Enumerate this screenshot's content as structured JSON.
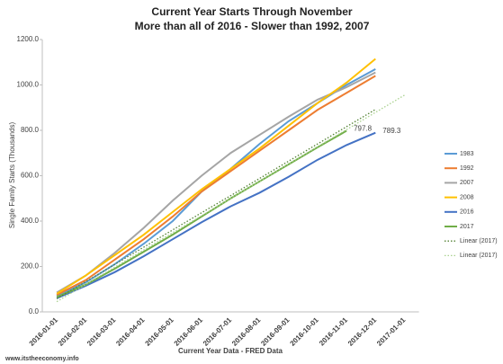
{
  "chart_data": {
    "type": "line",
    "title": "Current Year Starts Through November",
    "subtitle": "More than all of 2016 - Slower than 1992, 2007",
    "y_label": "Single Family Starts (Thousands)",
    "x_label": "Current Year Data - FRED Data",
    "footer": "www.itstheeconomy.info",
    "categories": [
      "2016-01-01",
      "2016-02-01",
      "2016-03-01",
      "2016-04-01",
      "2016-05-01",
      "2016-06-01",
      "2016-07-01",
      "2016-08-01",
      "2016-09-01",
      "2016-10-01",
      "2016-11-01",
      "2016-12-01",
      "2017-01-01"
    ],
    "ylim": [
      0,
      1200
    ],
    "yticks": [
      {
        "value": 0,
        "label": "0.0"
      },
      {
        "value": 200,
        "label": "200.0"
      },
      {
        "value": 400,
        "label": "400.0"
      },
      {
        "value": 600,
        "label": "600.0"
      },
      {
        "value": 800,
        "label": "800.0"
      },
      {
        "value": 1000,
        "label": "1000.0"
      },
      {
        "value": 1200,
        "label": "1200.0"
      }
    ],
    "legend": "right",
    "series": [
      {
        "name": "1983",
        "color": "#5b9bd5",
        "values": [
          70,
          130,
          210,
          300,
          400,
          530,
          630,
          740,
          840,
          920,
          1000,
          1070,
          null
        ]
      },
      {
        "name": "1992",
        "color": "#ed7d31",
        "values": [
          75,
          140,
          230,
          320,
          420,
          530,
          620,
          710,
          800,
          890,
          965,
          1040,
          null
        ]
      },
      {
        "name": "2007",
        "color": "#a5a5a5",
        "values": [
          85,
          160,
          260,
          370,
          490,
          600,
          700,
          780,
          860,
          935,
          990,
          1055,
          null
        ]
      },
      {
        "name": "2008",
        "color": "#ffc000",
        "values": [
          80,
          160,
          250,
          340,
          440,
          540,
          630,
          720,
          820,
          920,
          1010,
          1115,
          null
        ]
      },
      {
        "name": "2016",
        "color": "#4472c4",
        "values": [
          60,
          115,
          175,
          245,
          320,
          395,
          465,
          525,
          595,
          670,
          735,
          789.3,
          null
        ],
        "data_labels": true
      },
      {
        "name": "2017",
        "color": "#70ad47",
        "values": [
          65,
          120,
          190,
          265,
          340,
          420,
          500,
          575,
          650,
          725,
          797.8,
          null,
          null
        ],
        "data_labels": true
      },
      {
        "name": "Linear (2017)",
        "color": "#548235",
        "dash": "dotted",
        "values": [
          58,
          133,
          209,
          285,
          361,
          437,
          512,
          588,
          664,
          740,
          816,
          892,
          null
        ]
      },
      {
        "name": "Linear (2017)",
        "color": "#a9d18e",
        "dash": "dotted",
        "values": [
          45,
          121,
          197,
          273,
          349,
          424,
          500,
          576,
          652,
          728,
          803,
          879,
          955
        ]
      }
    ]
  }
}
